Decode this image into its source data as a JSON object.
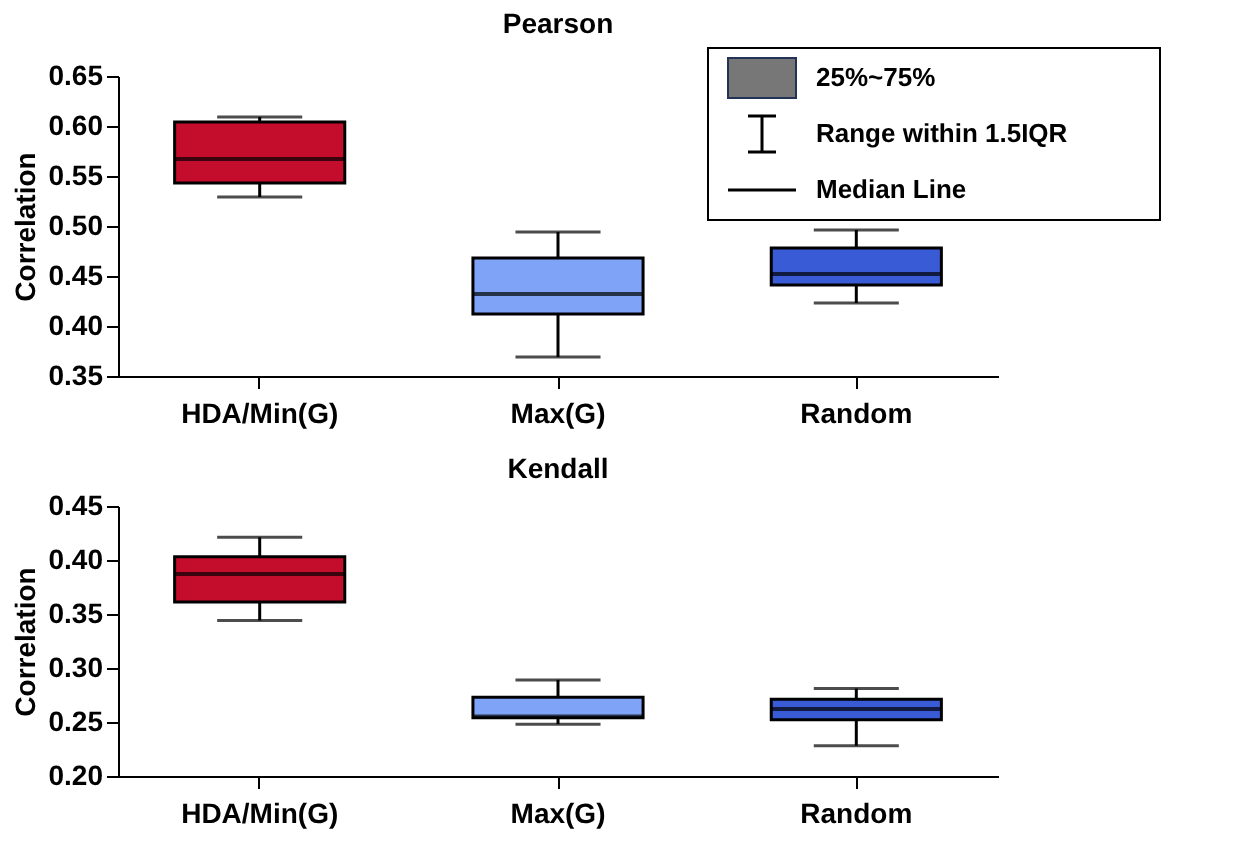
{
  "chart_data": [
    {
      "type": "box",
      "title": "Pearson",
      "ylabel": "Correlation",
      "categories": [
        "HDA/Min(G)",
        "Max(G)",
        "Random"
      ],
      "colors": [
        "#c40c2c",
        "#7fa3f7",
        "#3a5bd6"
      ],
      "boxes": [
        {
          "low": 0.529,
          "q1": 0.543,
          "median": 0.567,
          "q3": 0.604,
          "high": 0.609
        },
        {
          "low": 0.369,
          "q1": 0.412,
          "median": 0.432,
          "q3": 0.468,
          "high": 0.494
        },
        {
          "low": 0.423,
          "q1": 0.441,
          "median": 0.452,
          "q3": 0.478,
          "high": 0.496
        }
      ],
      "ylim": [
        0.35,
        0.65
      ],
      "yticks": [
        0.35,
        {
          "value": 0.4,
          "label": "0.40"
        },
        0.45,
        {
          "value": 0.5,
          "label": "0.50"
        },
        0.55,
        {
          "value": 0.6,
          "label": "0.60"
        },
        0.65
      ],
      "grid": false,
      "annotations": [
        "25%~75%",
        "Range within 1.5IQR",
        "Median Line"
      ]
    },
    {
      "type": "box",
      "title": "Kendall",
      "ylabel": "Correlation",
      "categories": [
        "HDA/Min(G)",
        "Max(G)",
        "Random"
      ],
      "colors": [
        "#c40c2c",
        "#7fa3f7",
        "#3a5bd6"
      ],
      "boxes": [
        {
          "low": 0.344,
          "q1": 0.361,
          "median": 0.387,
          "q3": 0.403,
          "high": 0.421
        },
        {
          "low": 0.248,
          "q1": 0.254,
          "median": 0.255,
          "q3": 0.273,
          "high": 0.289
        },
        {
          "low": 0.228,
          "q1": 0.252,
          "median": 0.262,
          "q3": 0.271,
          "high": 0.281
        }
      ],
      "ylim": [
        0.2,
        0.45
      ],
      "yticks": [
        {
          "value": 0.2,
          "label": "0.20"
        },
        0.25,
        {
          "value": 0.3,
          "label": "0.30"
        },
        0.35,
        {
          "value": 0.4,
          "label": "0.40"
        },
        0.45
      ],
      "grid": false
    }
  ]
}
